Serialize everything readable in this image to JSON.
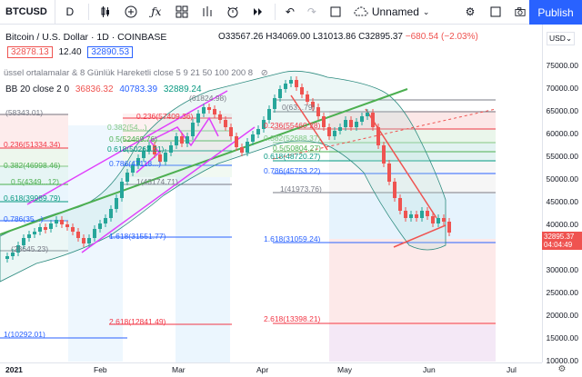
{
  "toolbar": {
    "symbol": "BTCUSD",
    "interval": "D",
    "unnamed_label": "Unnamed",
    "publish_label": "Publish"
  },
  "legend": {
    "title": "Bitcoin / U.S. Dollar · 1D · COINBASE",
    "open": "O33567.26",
    "high": "H34069.00",
    "low": "L31013.86",
    "close": "C32895.37",
    "change": "−680.54 (−2.03%)",
    "price_a": "32878.13",
    "spread": "12.40",
    "price_b": "32890.53",
    "indicator1": "üssel ortalamalar & 8 Günlük Hareketli close 5 9 21 50 100 200 8",
    "bb_label": "BB 20 close 2 0",
    "bb_v1": "36836.32",
    "bb_v2": "40783.39",
    "bb_v3": "32889.24"
  },
  "currency": "USD",
  "y_axis_ticks": [
    "75000.00",
    "70000.00",
    "65000.00",
    "60000.00",
    "55000.00",
    "50000.00",
    "45000.00",
    "40000.00",
    "35000.00",
    "30000.00",
    "25000.00",
    "20000.00",
    "15000.00",
    "10000.00",
    "5000.00"
  ],
  "x_axis_ticks": [
    "2021",
    "Feb",
    "Mar",
    "Apr",
    "May",
    "Jun",
    "Jul"
  ],
  "last_price": "32895.37",
  "countdown": "04:04:49",
  "fib_left": [
    {
      "text": "(58343.01)"
    },
    {
      "text": "0.236(51334.34)"
    },
    {
      "text": "0.382(46998.46)"
    },
    {
      "text": "0.5(4349...12)"
    },
    {
      "text": "0.618(39989.79)"
    },
    {
      "text": "0.786(35...)"
    },
    {
      "text": "(28645.23)"
    },
    {
      "text": "1(10292.01)"
    }
  ],
  "fib_mid": [
    {
      "text": "0.236(57409.36)"
    },
    {
      "text": "0.382(54...)"
    },
    {
      "text": "0.5(52469.76)"
    },
    {
      "text": "0.618(50262.21)"
    },
    {
      "text": "0.786(47118...)"
    },
    {
      "text": "1(43174.71)"
    },
    {
      "text": "1.618(31551.77)"
    },
    {
      "text": "2.618(12841.49)"
    }
  ],
  "fib_right": [
    {
      "text": "(61824.98)"
    },
    {
      "text": "0(63...79)"
    },
    {
      "text": "0.236(55460.28)"
    },
    {
      "text": "0.382(52688.37)"
    },
    {
      "text": "0.5(50804.27)"
    },
    {
      "text": "0.618(48720.27)"
    },
    {
      "text": "0.786(45753.22)"
    },
    {
      "text": "1(41973.76)"
    },
    {
      "text": "1.618(31059.24)"
    },
    {
      "text": "2.618(13398.21)"
    }
  ]
}
